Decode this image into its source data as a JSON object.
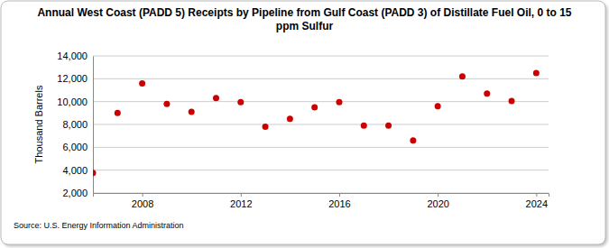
{
  "chart_data": {
    "type": "scatter",
    "title": "Annual West Coast (PADD 5) Receipts by Pipeline from Gulf Coast (PADD 3) of Distillate Fuel Oil, 0 to 15 ppm Sulfur",
    "y_label": "Thousand Barrels",
    "annotations": [
      "Source: U.S. Energy Information Administration"
    ],
    "x": [
      2006,
      2007,
      2008,
      2009,
      2010,
      2011,
      2012,
      2013,
      2014,
      2015,
      2016,
      2017,
      2018,
      2019,
      2020,
      2021,
      2022,
      2023,
      2024
    ],
    "series": [
      {
        "name": "Receipts",
        "color": "#cc0000",
        "marker": "circle",
        "values": [
          3750,
          9000,
          11600,
          9800,
          9100,
          10300,
          9950,
          7800,
          8500,
          9500,
          9950,
          7900,
          7900,
          6600,
          9600,
          12200,
          10700,
          10050,
          12500
        ]
      }
    ],
    "xlim": [
      2006,
      2024.5
    ],
    "xticks": [
      2008,
      2012,
      2016,
      2020,
      2024
    ],
    "ylim": [
      2000,
      14000
    ],
    "yticks": [
      {
        "value": 2000,
        "label": "2,000"
      },
      {
        "value": 4000,
        "label": "4,000"
      },
      {
        "value": 6000,
        "label": "6,000"
      },
      {
        "value": 8000,
        "label": "8,000"
      },
      {
        "value": 10000,
        "label": "10,000"
      },
      {
        "value": 12000,
        "label": "12,000"
      },
      {
        "value": 14000,
        "label": "14,000"
      }
    ],
    "grid": true
  }
}
